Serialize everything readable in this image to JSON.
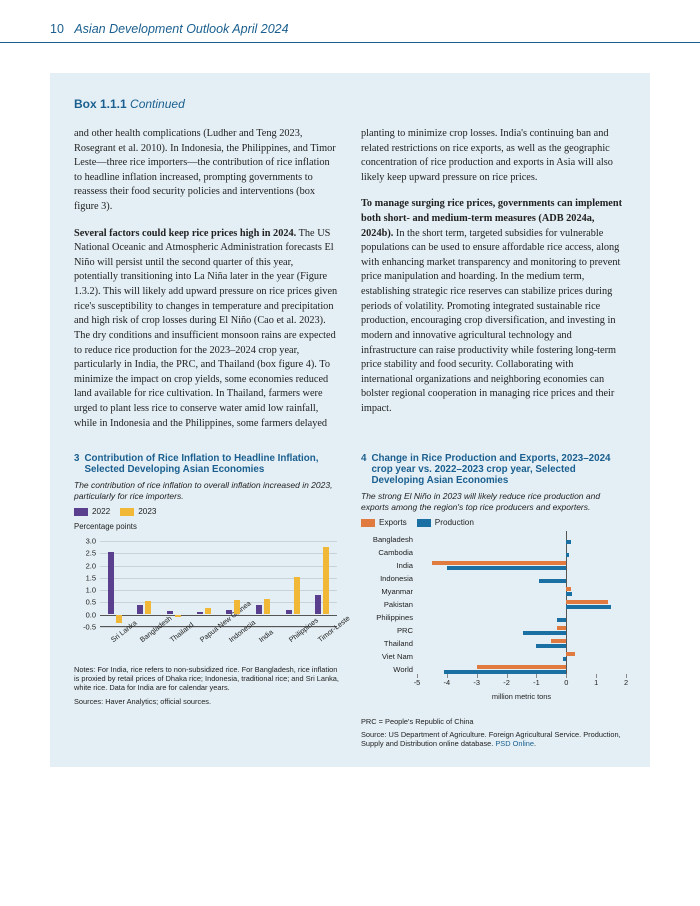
{
  "header": {
    "page": "10",
    "title": "Asian Development Outlook April 2024"
  },
  "box": {
    "label": "Box 1.1.1",
    "cont": "Continued"
  },
  "left_col": {
    "p1": "and other health complications (Ludher and Teng 2023, Rosegrant et al. 2010). In Indonesia, the Philippines, and Timor Leste—three rice importers—the contribution of rice inflation to headline inflation increased, prompting governments to reassess their food security policies and interventions (box figure 3).",
    "p2_lead": "Several factors could keep rice prices high in 2024.",
    "p2": " The US National Oceanic and Atmospheric Administration forecasts El Niño will persist until the second quarter of this year, potentially transitioning into La Niña later in the year (Figure 1.3.2). This will likely add upward pressure on rice prices given rice's susceptibility to changes in temperature and precipitation and high risk of crop losses during El Niño (Cao et al. 2023). The dry conditions and insufficient monsoon rains are expected to reduce rice production for the 2023–2024 crop year, particularly in India, the PRC, and Thailand (box figure 4). To minimize the impact on crop yields, some economies reduced land available for rice cultivation. In Thailand, farmers were urged to plant less rice to conserve water amid low rainfall, while in Indonesia and the Philippines, some farmers delayed"
  },
  "right_col": {
    "p1": "planting to minimize crop losses. India's continuing ban and related restrictions on rice exports, as well as the geographic concentration of rice production and exports in Asia will also likely keep upward pressure on rice prices.",
    "p2_lead": "To manage surging rice prices, governments can implement both short- and medium-term measures (ADB 2024a, 2024b).",
    "p2": " In the short term, targeted subsidies for vulnerable populations can be used to ensure affordable rice access, along with enhancing market transparency and monitoring to prevent price manipulation and hoarding. In the medium term, establishing strategic rice reserves can stabilize prices during periods of volatility. Promoting integrated sustainable rice production, encouraging crop diversification, and investing in modern and innovative agricultural technology and infrastructure can raise productivity while fostering long-term price stability and food security. Collaborating with international organizations and neighboring economies can bolster regional cooperation in managing rice prices and their impact."
  },
  "chart3": {
    "num": "3",
    "title": "Contribution of Rice Inflation to Headline Inflation, Selected Developing Asian Economies",
    "sub": "The contribution of rice inflation to overall inflation increased in 2023, particularly for rice importers.",
    "legend": [
      {
        "label": "2022",
        "color": "#5b3f8f"
      },
      {
        "label": "2023",
        "color": "#f0b836"
      }
    ],
    "ylabel": "Percentage points",
    "ymin": -0.5,
    "ymax": 3.0,
    "ystep": 0.5,
    "categories": [
      "Sri Lanka",
      "Bangladesh",
      "Thailand",
      "Papua New Guinea",
      "Indonesia",
      "India",
      "Philippines",
      "Timor-Leste"
    ],
    "series2022": [
      2.5,
      0.35,
      0.1,
      0.05,
      0.15,
      0.35,
      0.15,
      0.75
    ],
    "series2023": [
      -0.35,
      0.5,
      -0.1,
      0.25,
      0.55,
      0.6,
      1.5,
      2.7
    ],
    "colors": {
      "2022": "#5b3f8f",
      "2023": "#f0b836"
    },
    "notes": "Notes: For India, rice refers to non-subsidized rice. For Bangladesh, rice inflation is proxied by retail prices of Dhaka rice; Indonesia, traditional rice; and Sri Lanka, white rice. Data for India are for calendar years.",
    "source": "Sources: Haver Analytics; official sources."
  },
  "chart4": {
    "num": "4",
    "title": "Change in Rice Production and Exports, 2023–2024 crop year vs. 2022–2023 crop year, Selected Developing Asian Economies",
    "sub": "The strong El Niño in 2023 will likely reduce rice production and exports among the region's top rice producers and exporters.",
    "legend": [
      {
        "label": "Exports",
        "color": "#e07a3f"
      },
      {
        "label": "Production",
        "color": "#1a6fa3"
      }
    ],
    "xlabel": "million metric tons",
    "xmin": -5,
    "xmax": 2,
    "xstep": 1,
    "rows": [
      {
        "label": "Bangladesh",
        "exports": 0.0,
        "production": 0.15
      },
      {
        "label": "Cambodia",
        "exports": 0.0,
        "production": 0.1
      },
      {
        "label": "India",
        "exports": -4.5,
        "production": -4.0
      },
      {
        "label": "Indonesia",
        "exports": 0.0,
        "production": -0.9
      },
      {
        "label": "Myanmar",
        "exports": 0.15,
        "production": 0.2
      },
      {
        "label": "Pakistan",
        "exports": 1.4,
        "production": 1.5
      },
      {
        "label": "Philippines",
        "exports": 0.0,
        "production": -0.3
      },
      {
        "label": "PRC",
        "exports": -0.3,
        "production": -1.45
      },
      {
        "label": "Thailand",
        "exports": -0.5,
        "production": -1.0
      },
      {
        "label": "Viet Nam",
        "exports": 0.3,
        "production": -0.1
      },
      {
        "label": "World",
        "exports": -3.0,
        "production": -4.1
      }
    ],
    "colors": {
      "exports": "#e07a3f",
      "production": "#1a6fa3"
    },
    "notes1": "PRC = People's Republic of China",
    "notes2_a": "Source: US Department of Agriculture. Foreign Agricultural Service. Production, Supply and Distribution online database. ",
    "notes2_link": "PSD Online",
    "notes2_b": "."
  }
}
